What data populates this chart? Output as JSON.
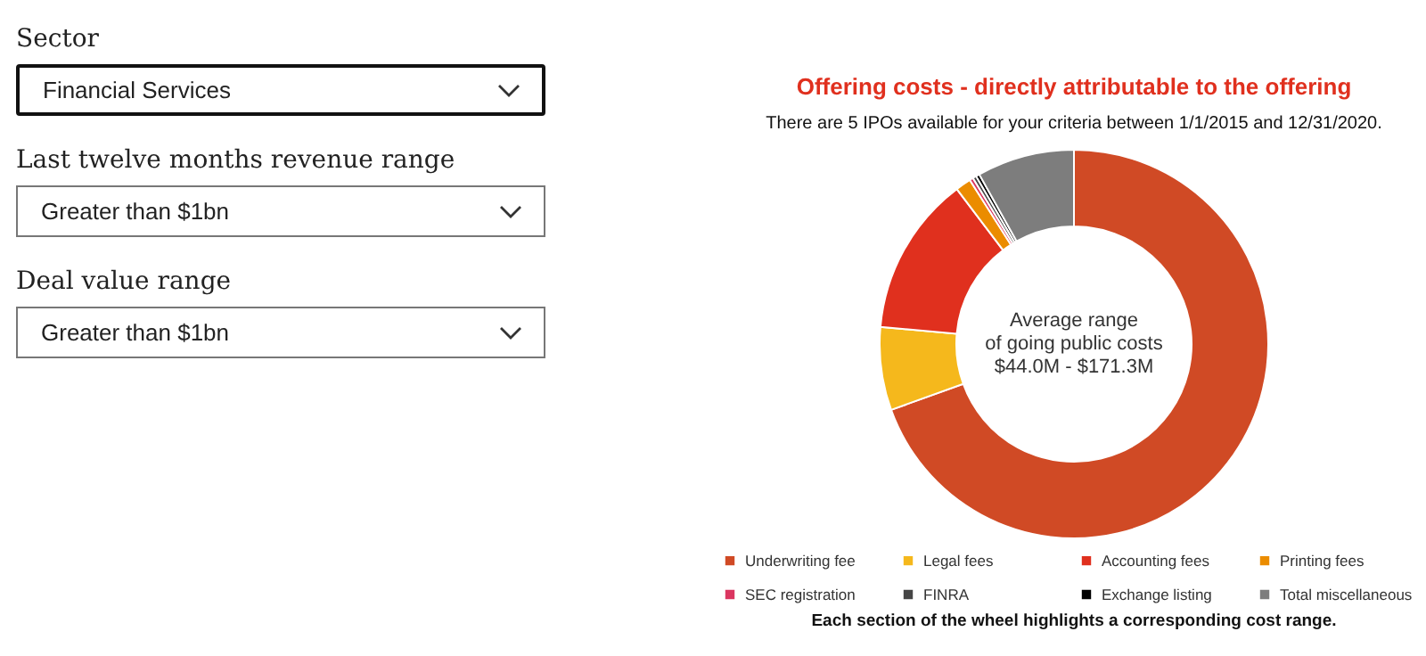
{
  "chart_data": {
    "type": "donut",
    "title": "Offering costs - directly attributable to the offering",
    "subtitle": "There are 5 IPOs available for your criteria between 1/1/2015 and 12/31/2020.",
    "categories": [
      "Underwriting fee",
      "Legal fees",
      "Accounting fees",
      "Printing fees",
      "SEC registration",
      "FINRA",
      "Exchange listing",
      "Total miscellaneous"
    ],
    "values": [
      69.5,
      6.9,
      13.3,
      1.3,
      0.3,
      0.3,
      0.3,
      8.1
    ],
    "colors": [
      "#d04a25",
      "#f5b81c",
      "#e0301e",
      "#eb8c00",
      "#db3660",
      "#464646",
      "#000000",
      "#7d7d7d"
    ],
    "legend": "bottom",
    "annotations": [
      "Sector",
      "Financial Services",
      "Last twelve months revenue range",
      "Greater than $1bn",
      "Deal value range",
      "Greater than $1bn",
      "Average range",
      "of going public costs",
      "$44.0M - $171.3M",
      "Each section of the wheel highlights a corresponding cost range."
    ]
  }
}
